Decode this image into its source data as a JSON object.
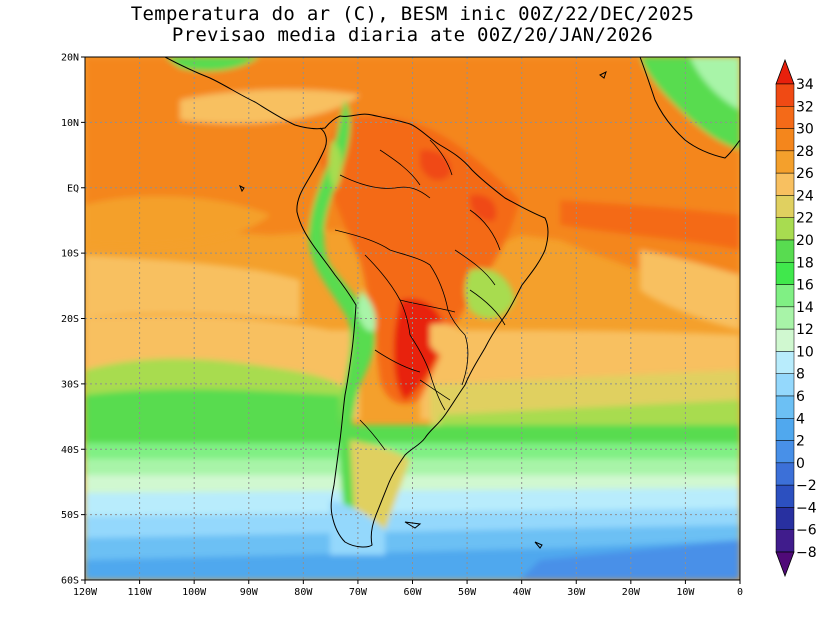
{
  "title": {
    "line1": "Temperatura do ar (C), BESM inic 00Z/22/DEC/2025",
    "line2": "Previsao media diaria ate 00Z/20/JAN/2026"
  },
  "map": {
    "lon_range": [
      -120,
      0
    ],
    "lat_range": [
      -60,
      20
    ],
    "lon_ticks": [
      {
        "value": -120,
        "label": "120W"
      },
      {
        "value": -110,
        "label": "110W"
      },
      {
        "value": -100,
        "label": "100W"
      },
      {
        "value": -90,
        "label": "90W"
      },
      {
        "value": -80,
        "label": "80W"
      },
      {
        "value": -70,
        "label": "70W"
      },
      {
        "value": -60,
        "label": "60W"
      },
      {
        "value": -50,
        "label": "50W"
      },
      {
        "value": -40,
        "label": "40W"
      },
      {
        "value": -30,
        "label": "30W"
      },
      {
        "value": -20,
        "label": "20W"
      },
      {
        "value": -10,
        "label": "10W"
      },
      {
        "value": 0,
        "label": "0"
      }
    ],
    "lat_ticks": [
      {
        "value": 20,
        "label": "20N"
      },
      {
        "value": 10,
        "label": "10N"
      },
      {
        "value": 0,
        "label": "EQ"
      },
      {
        "value": -10,
        "label": "10S"
      },
      {
        "value": -20,
        "label": "20S"
      },
      {
        "value": -30,
        "label": "30S"
      },
      {
        "value": -40,
        "label": "40S"
      },
      {
        "value": -50,
        "label": "50S"
      },
      {
        "value": -60,
        "label": "60S"
      }
    ]
  },
  "colorbar": {
    "levels": [
      34,
      32,
      30,
      28,
      26,
      24,
      22,
      20,
      18,
      16,
      14,
      12,
      10,
      8,
      6,
      4,
      2,
      0,
      -2,
      -4,
      -6,
      -8
    ],
    "labels": [
      "34",
      "32",
      "30",
      "28",
      "26",
      "24",
      "22",
      "20",
      "18",
      "16",
      "14",
      "12",
      "10",
      "8",
      "6",
      "4",
      "2",
      "0",
      "−2",
      "−4",
      "−6",
      "−8"
    ],
    "colors": [
      "#e8200c",
      "#f04a14",
      "#f46a18",
      "#f4861c",
      "#f4a02c",
      "#f8c060",
      "#e0d060",
      "#a8dc50",
      "#58dc50",
      "#40e84c",
      "#80f084",
      "#a8f4a8",
      "#d0f8d0",
      "#b8ecfc",
      "#94d8fc",
      "#6cc0f4",
      "#50a8ee",
      "#4890e8",
      "#3c70d8",
      "#2c50c0",
      "#2830a0",
      "#401c8c",
      "#500a78"
    ]
  }
}
